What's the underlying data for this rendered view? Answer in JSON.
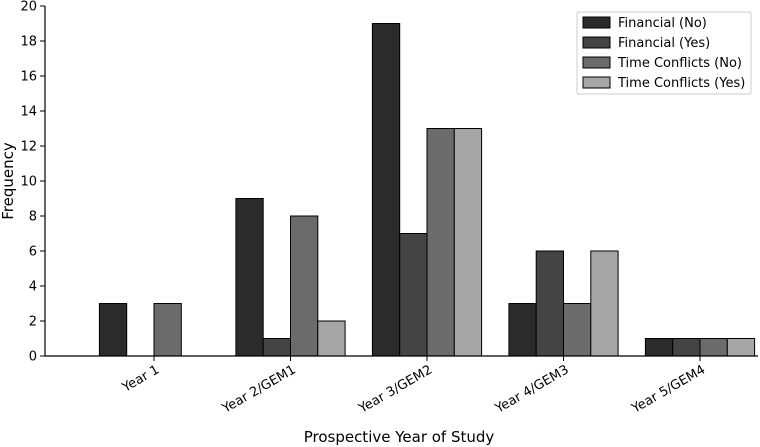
{
  "chart_data": {
    "type": "bar",
    "title": "",
    "xlabel": "Prospective Year of Study",
    "ylabel": "Frequency",
    "ylim": [
      0,
      20
    ],
    "yticks": [
      "0",
      "2",
      "4",
      "6",
      "8",
      "10",
      "12",
      "14",
      "16",
      "18",
      "20"
    ],
    "categories": [
      "Year 1",
      "Year 2/GEM1",
      "Year 3/GEM2",
      "Year 4/GEM3",
      "Year 5/GEM4"
    ],
    "series": [
      {
        "name": "Financial (No)",
        "color": "#2b2b2b",
        "values": [
          3,
          9,
          19,
          3,
          1
        ]
      },
      {
        "name": "Financial (Yes)",
        "color": "#444444",
        "values": [
          0,
          1,
          7,
          6,
          1
        ]
      },
      {
        "name": "Time Conflicts (No)",
        "color": "#6b6b6b",
        "values": [
          3,
          8,
          13,
          3,
          1
        ]
      },
      {
        "name": "Time Conflicts (Yes)",
        "color": "#a6a6a6",
        "values": [
          0,
          2,
          13,
          6,
          1
        ]
      }
    ],
    "legend_position": "top-right",
    "grid": false
  }
}
